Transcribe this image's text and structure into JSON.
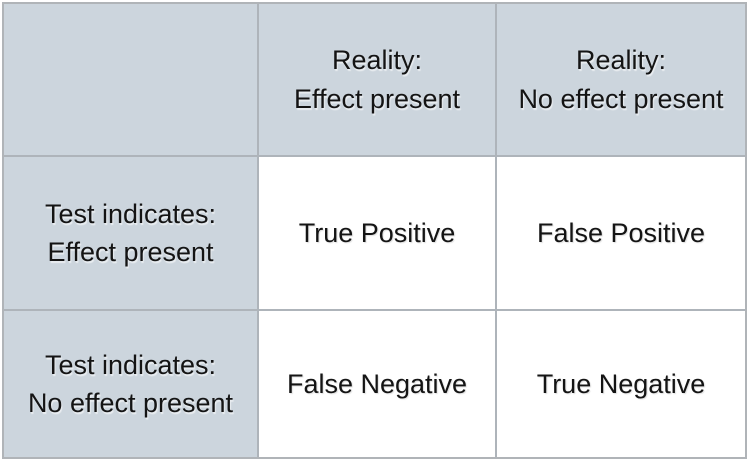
{
  "table": {
    "corner": "",
    "col_headers": [
      {
        "lines": [
          "Reality:",
          "Effect present"
        ]
      },
      {
        "lines": [
          "Reality:",
          "No effect present"
        ]
      }
    ],
    "row_headers": [
      {
        "lines": [
          "Test indicates:",
          "Effect present"
        ]
      },
      {
        "lines": [
          "Test indicates:",
          "No effect present"
        ]
      }
    ],
    "cells": [
      [
        "True Positive",
        "False Positive"
      ],
      [
        "False Negative",
        "True Negative"
      ]
    ],
    "colors": {
      "header_bg": "#ccd5dd",
      "cell_bg": "#ffffff",
      "grid": "#aeb4ba",
      "outer_border": "#b0b4b8",
      "text": "#141414"
    }
  }
}
